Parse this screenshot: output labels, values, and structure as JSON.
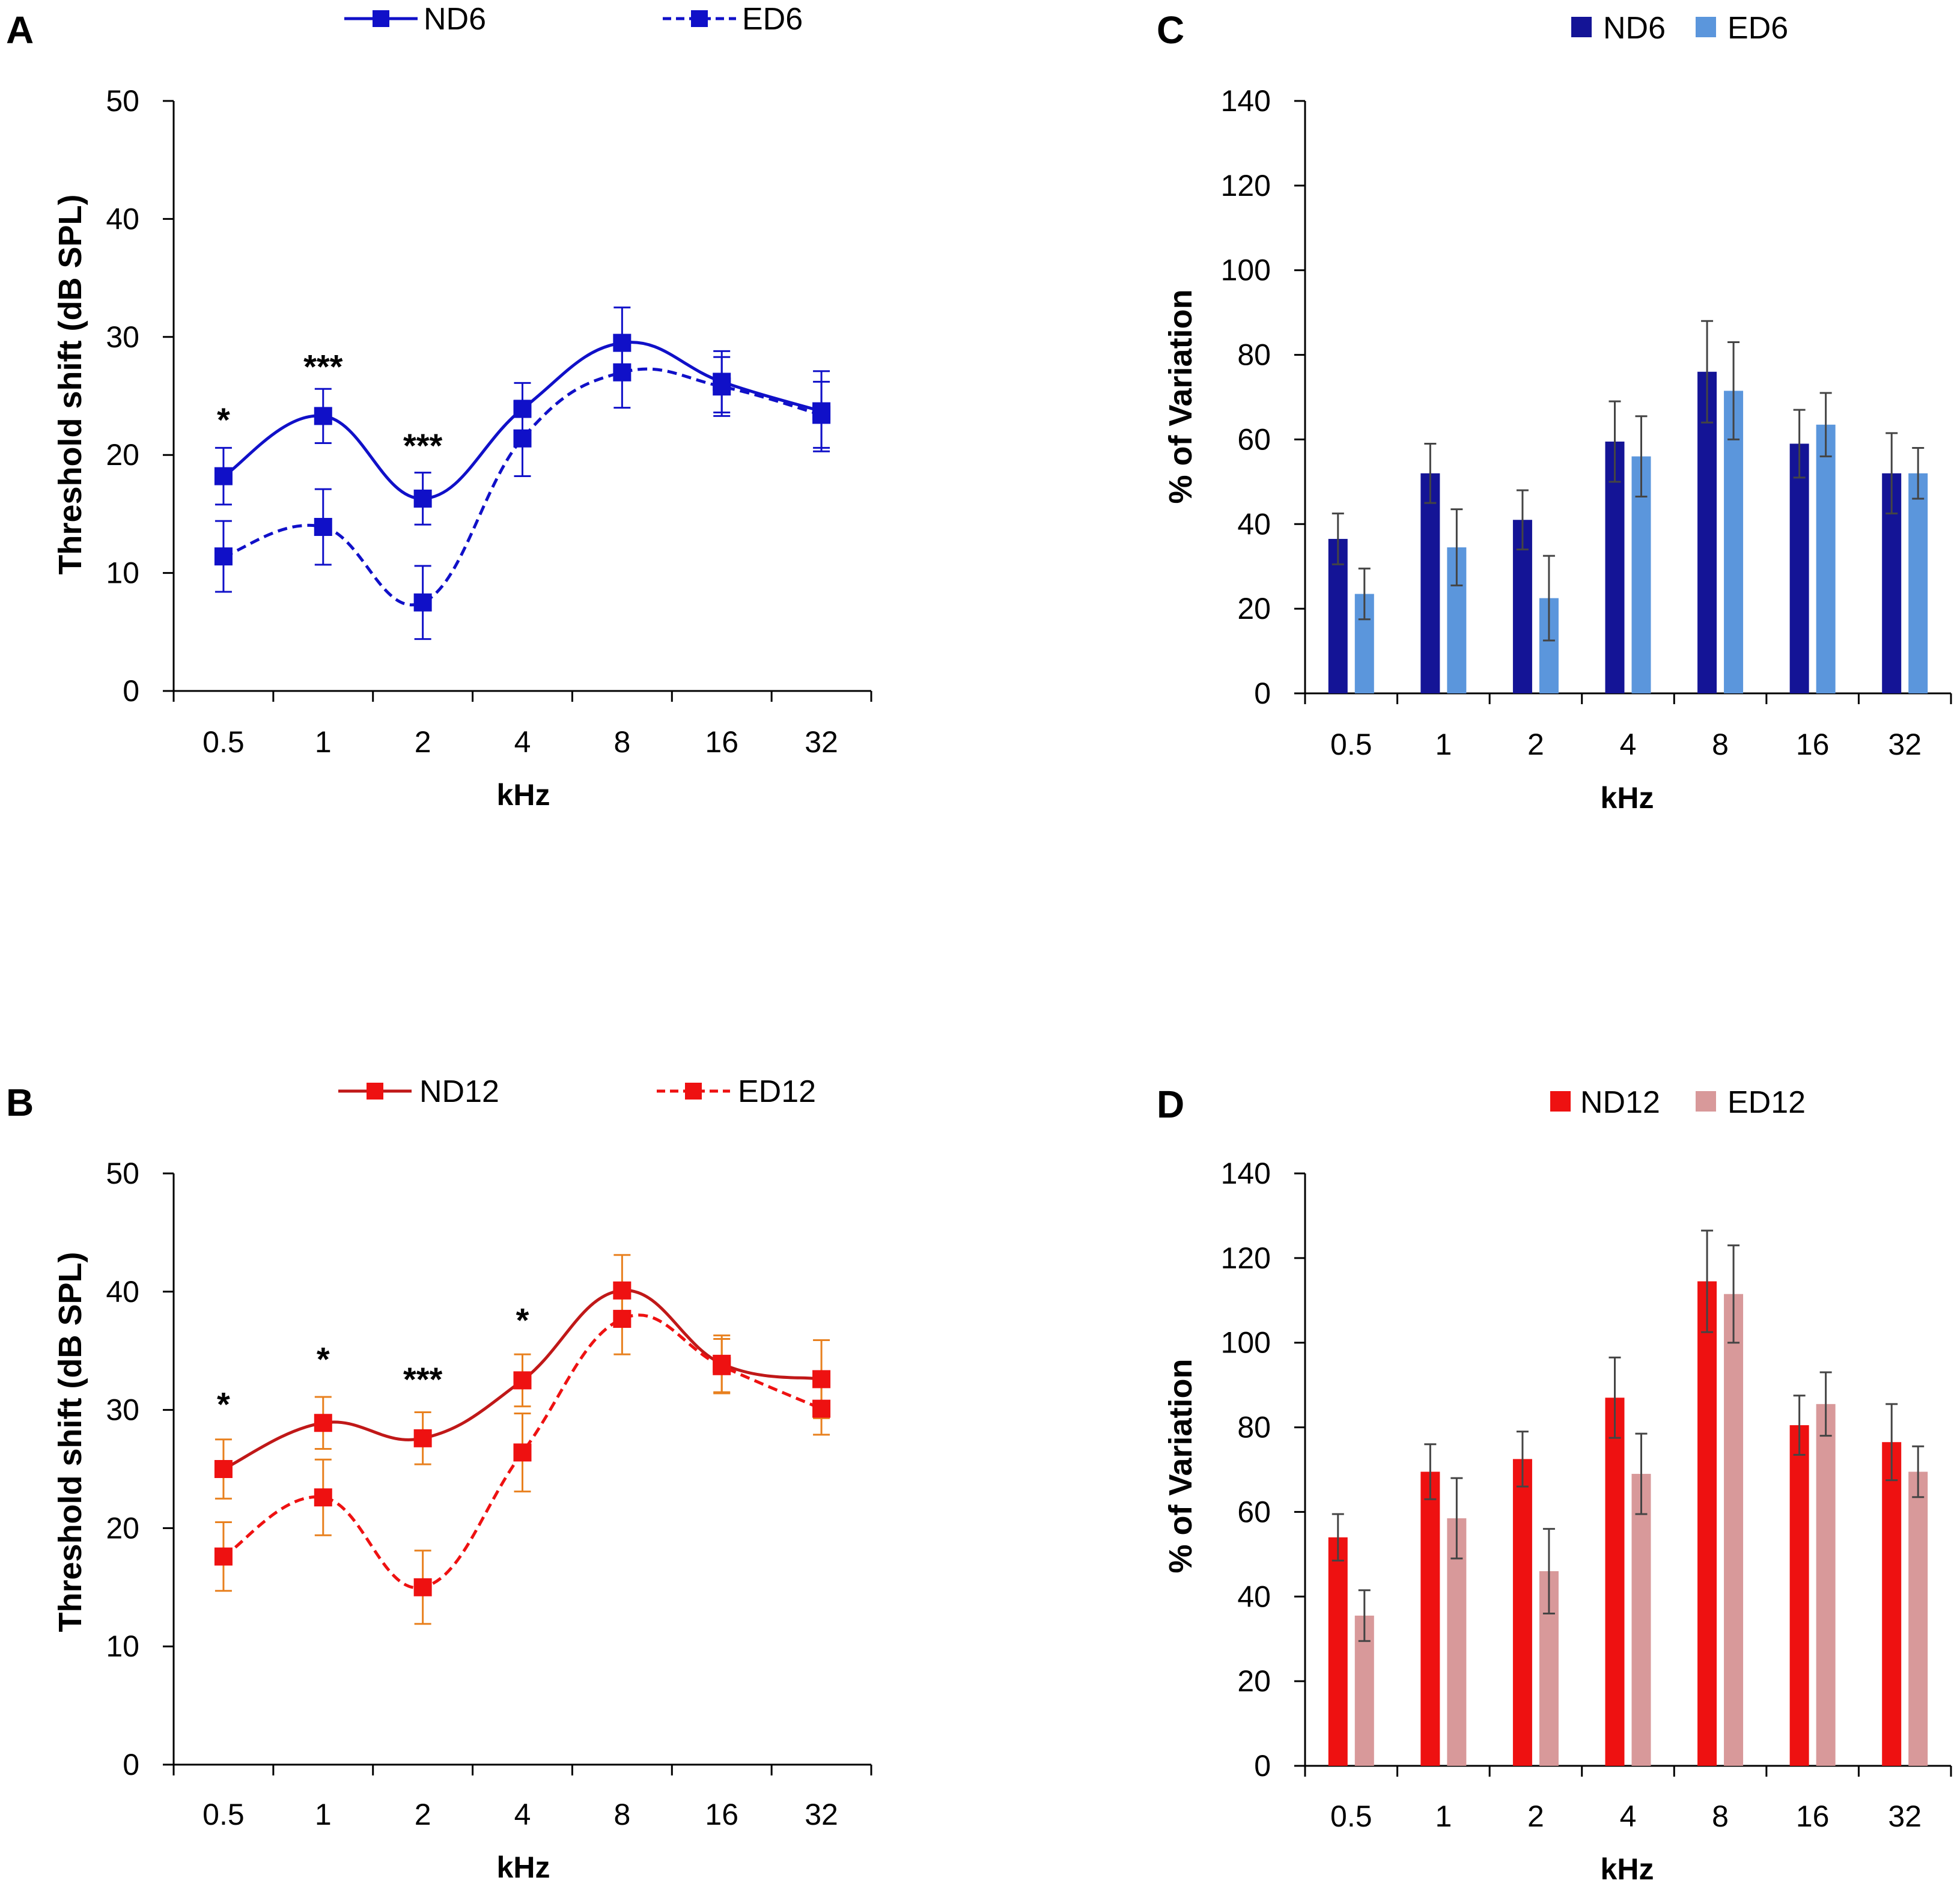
{
  "chart_data": [
    {
      "panel": "A",
      "type": "line",
      "categories": [
        "0.5",
        "1",
        "2",
        "4",
        "8",
        "16",
        "32"
      ],
      "xlabel": "kHz",
      "ylabel": "Threshold shift (dB SPL)",
      "ylim": [
        0,
        50
      ],
      "yticks": [
        "0",
        "10",
        "20",
        "30",
        "40",
        "50"
      ],
      "grid": false,
      "legend_position": "top",
      "error_bar_color": "#1010c8",
      "series": [
        {
          "name": "ND6",
          "style": "solid",
          "color": "#1010c8",
          "marker_color": "#1010c8",
          "values": [
            18.2,
            23.3,
            16.3,
            23.9,
            29.5,
            26.2,
            23.7
          ],
          "errors": [
            2.4,
            2.3,
            2.2,
            2.2,
            3.0,
            2.6,
            3.4
          ]
        },
        {
          "name": "ED6",
          "style": "dashed",
          "color": "#1010c8",
          "marker_color": "#1010c8",
          "values": [
            11.4,
            13.9,
            7.5,
            21.4,
            27.0,
            25.8,
            23.4
          ],
          "errors": [
            3.0,
            3.2,
            3.1,
            3.2,
            3.0,
            2.5,
            2.8
          ]
        }
      ],
      "annotations": [
        {
          "category": "0.5",
          "y": 22.0,
          "text": "*"
        },
        {
          "category": "1",
          "y": 26.5,
          "text": "***"
        },
        {
          "category": "2",
          "y": 19.8,
          "text": "***"
        }
      ]
    },
    {
      "panel": "B",
      "type": "line",
      "categories": [
        "0.5",
        "1",
        "2",
        "4",
        "8",
        "16",
        "32"
      ],
      "xlabel": "kHz",
      "ylabel": "Threshold shift (dB SPL)",
      "ylim": [
        0,
        50
      ],
      "yticks": [
        "0",
        "10",
        "20",
        "30",
        "40",
        "50"
      ],
      "grid": false,
      "legend_position": "top",
      "error_bar_color": "#e8801e",
      "series": [
        {
          "name": "ND12",
          "style": "solid",
          "color": "#c01818",
          "marker_color": "#ee1111",
          "values": [
            25.0,
            28.9,
            27.6,
            32.5,
            40.1,
            33.9,
            32.6
          ],
          "errors": [
            2.5,
            2.2,
            2.2,
            2.2,
            3.0,
            2.4,
            3.3
          ]
        },
        {
          "name": "ED12",
          "style": "dashed",
          "color": "#ee1111",
          "marker_color": "#ee1111",
          "values": [
            17.6,
            22.6,
            15.0,
            26.4,
            37.7,
            33.7,
            30.1
          ],
          "errors": [
            2.9,
            3.2,
            3.1,
            3.3,
            3.0,
            2.3,
            2.2
          ]
        }
      ],
      "annotations": [
        {
          "category": "0.5",
          "y": 29.5,
          "text": "*"
        },
        {
          "category": "1",
          "y": 33.3,
          "text": "*"
        },
        {
          "category": "2",
          "y": 31.6,
          "text": "***"
        },
        {
          "category": "4",
          "y": 36.6,
          "text": "*"
        }
      ]
    },
    {
      "panel": "C",
      "type": "bar",
      "categories": [
        "0.5",
        "1",
        "2",
        "4",
        "8",
        "16",
        "32"
      ],
      "xlabel": "kHz",
      "ylabel": "% of Variation",
      "ylim": [
        0,
        140
      ],
      "yticks": [
        "0",
        "20",
        "40",
        "60",
        "80",
        "100",
        "120",
        "140"
      ],
      "grid": false,
      "legend_position": "top",
      "series": [
        {
          "name": "ND6",
          "color": "#141496",
          "values": [
            36.5,
            52.0,
            41.0,
            59.5,
            76.0,
            59.0,
            52.0
          ],
          "errors": [
            6.0,
            7.0,
            7.0,
            9.5,
            12.0,
            8.0,
            9.5
          ]
        },
        {
          "name": "ED6",
          "color": "#5b96dc",
          "values": [
            23.5,
            34.5,
            22.5,
            56.0,
            71.5,
            63.5,
            52.0
          ],
          "errors": [
            6.0,
            9.0,
            10.0,
            9.5,
            11.5,
            7.5,
            6.0
          ]
        }
      ]
    },
    {
      "panel": "D",
      "type": "bar",
      "categories": [
        "0.5",
        "1",
        "2",
        "4",
        "8",
        "16",
        "32"
      ],
      "xlabel": "kHz",
      "ylabel": "% of Variation",
      "ylim": [
        0,
        140
      ],
      "yticks": [
        "0",
        "20",
        "40",
        "60",
        "80",
        "100",
        "120",
        "140"
      ],
      "grid": false,
      "legend_position": "top",
      "series": [
        {
          "name": "ND12",
          "color": "#ee1111",
          "values": [
            54.0,
            69.5,
            72.5,
            87.0,
            114.5,
            80.5,
            76.5
          ],
          "errors": [
            5.5,
            6.5,
            6.5,
            9.5,
            12.0,
            7.0,
            9.0
          ]
        },
        {
          "name": "ED12",
          "color": "#d8999a",
          "values": [
            35.5,
            58.5,
            46.0,
            69.0,
            111.5,
            85.5,
            69.5
          ],
          "errors": [
            6.0,
            9.5,
            10.0,
            9.5,
            11.5,
            7.5,
            6.0
          ]
        }
      ]
    }
  ]
}
